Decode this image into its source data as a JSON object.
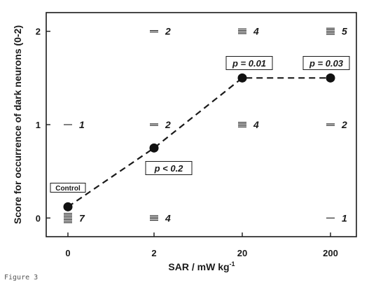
{
  "chart_data": {
    "type": "line",
    "title": "",
    "xlabel": "SAR / mW kg",
    "xlabel_superscript": "-1",
    "ylabel": "Score for occurrence of dark neurons (0-2)",
    "categories": [
      "0",
      "2",
      "20",
      "200"
    ],
    "y_ticks": [
      "0",
      "1",
      "2"
    ],
    "ylim": [
      -0.2,
      2.2
    ],
    "series": [
      {
        "values": [
          0.12,
          0.75,
          1.5,
          1.5
        ]
      }
    ],
    "distribution": [
      {
        "x": "0",
        "score": 0,
        "count": "7"
      },
      {
        "x": "0",
        "score": 1,
        "count": "1"
      },
      {
        "x": "2",
        "score": 0,
        "count": "4"
      },
      {
        "x": "2",
        "score": 1,
        "count": "2"
      },
      {
        "x": "2",
        "score": 2,
        "count": "2"
      },
      {
        "x": "20",
        "score": 1,
        "count": "4"
      },
      {
        "x": "20",
        "score": 2,
        "count": "4"
      },
      {
        "x": "200",
        "score": 0,
        "count": "1"
      },
      {
        "x": "200",
        "score": 1,
        "count": "2"
      },
      {
        "x": "200",
        "score": 2,
        "count": "5"
      }
    ],
    "annotations": [
      {
        "text": "Control",
        "x": "0"
      },
      {
        "text": "p < 0.2",
        "x": "2"
      },
      {
        "text": "p = 0.01",
        "x": "20"
      },
      {
        "text": "p = 0.03",
        "x": "200"
      }
    ],
    "grid": false,
    "legend": "none"
  },
  "figure_label": "Figure 3"
}
